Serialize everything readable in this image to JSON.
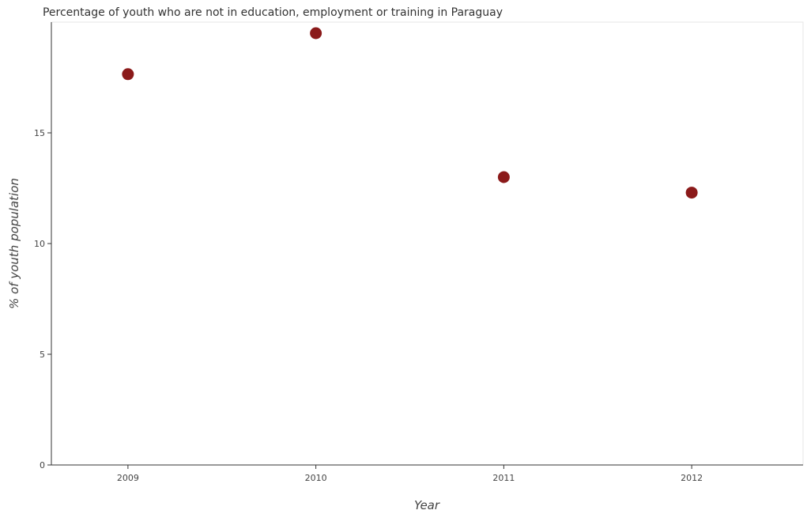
{
  "chart_data": {
    "type": "scatter",
    "title": "Percentage of youth who are not in education, employment or training in Paraguay",
    "xlabel": "Year",
    "ylabel": "% of youth population",
    "categories": [
      "2009",
      "2010",
      "2011",
      "2012"
    ],
    "values": [
      17.65,
      19.5,
      13.0,
      12.3
    ],
    "yticks": [
      "0",
      "5",
      "10",
      "15"
    ],
    "ylim": [
      0,
      20
    ],
    "grid": false,
    "marker_color": "#8b1a1a"
  }
}
